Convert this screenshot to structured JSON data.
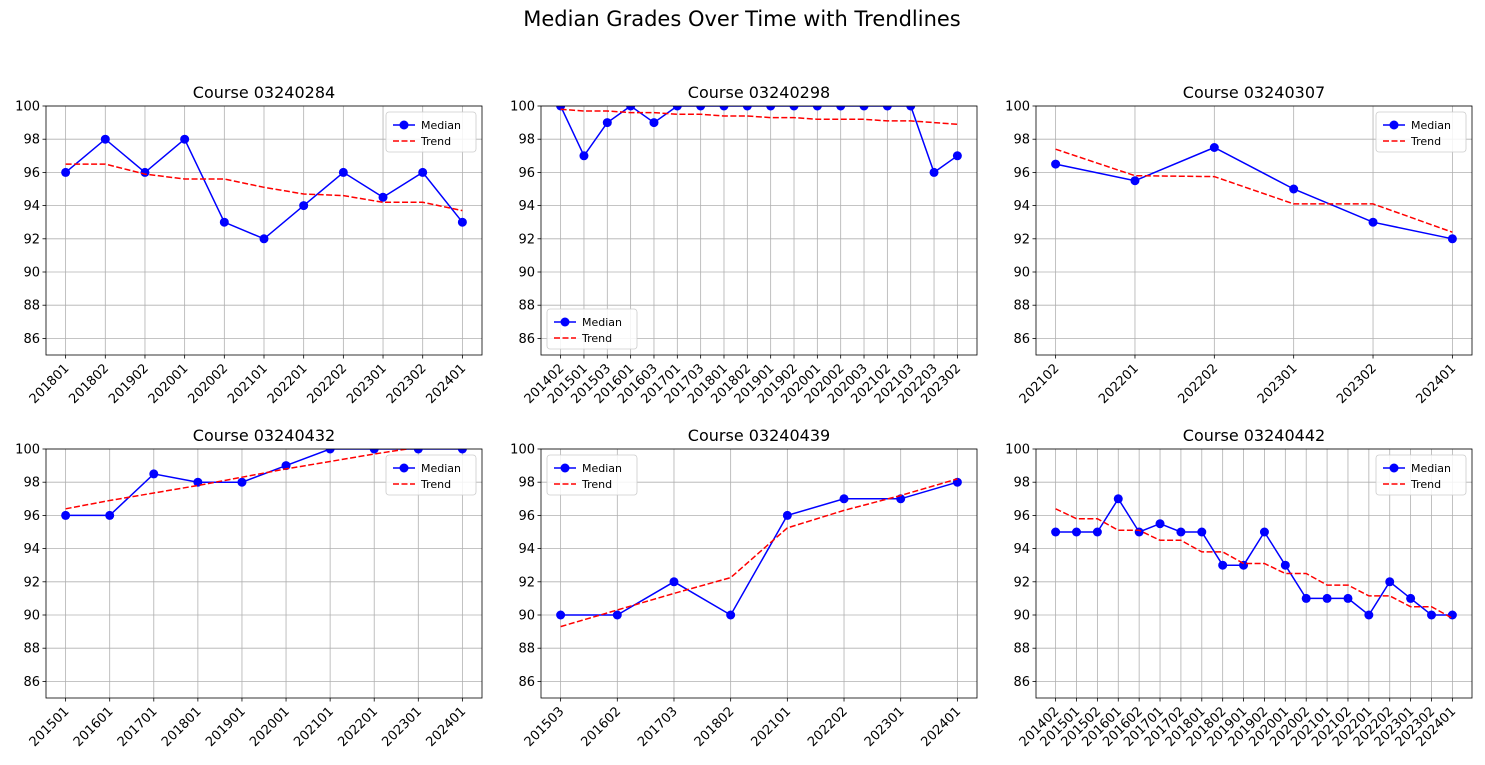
{
  "figure_title": "Median Grades Over Time with Trendlines",
  "chart_data": [
    {
      "type": "line",
      "title": "Course 03240284",
      "ylim": [
        85,
        100
      ],
      "yticks": [
        86,
        88,
        90,
        92,
        94,
        96,
        98,
        100
      ],
      "grid": true,
      "legend_position": "upper-right",
      "categories": [
        "201801",
        "201802",
        "201902",
        "202001",
        "202002",
        "202101",
        "202201",
        "202202",
        "202301",
        "202302",
        "202401"
      ],
      "series": [
        {
          "name": "Median",
          "color": "#0000ff",
          "style": "solid",
          "markers": true,
          "values": [
            96,
            98,
            96,
            98,
            93,
            92,
            94,
            96,
            94.5,
            96,
            93
          ]
        },
        {
          "name": "Trend",
          "color": "#ff0000",
          "style": "dashed",
          "markers": false,
          "values": [
            96.5,
            96.5,
            95.9,
            95.6,
            95.6,
            95.1,
            94.7,
            94.6,
            94.2,
            94.2,
            93.7
          ]
        }
      ]
    },
    {
      "type": "line",
      "title": "Course 03240298",
      "ylim": [
        85,
        100
      ],
      "yticks": [
        86,
        88,
        90,
        92,
        94,
        96,
        98,
        100
      ],
      "grid": true,
      "legend_position": "lower-left",
      "categories": [
        "201402",
        "201501",
        "201503",
        "201601",
        "201603",
        "201701",
        "201703",
        "201801",
        "201802",
        "201901",
        "201902",
        "202001",
        "202002",
        "202003",
        "202102",
        "202103",
        "202203",
        "202302"
      ],
      "series": [
        {
          "name": "Median",
          "color": "#0000ff",
          "style": "solid",
          "markers": true,
          "values": [
            100,
            97,
            99,
            100,
            99,
            100,
            100,
            100,
            100,
            100,
            100,
            100,
            100,
            100,
            100,
            100,
            96,
            97
          ]
        },
        {
          "name": "Trend",
          "color": "#ff0000",
          "style": "dashed",
          "markers": false,
          "values": [
            99.8,
            99.7,
            99.7,
            99.6,
            99.6,
            99.5,
            99.5,
            99.4,
            99.4,
            99.3,
            99.3,
            99.2,
            99.2,
            99.2,
            99.1,
            99.1,
            99.0,
            98.9
          ]
        }
      ]
    },
    {
      "type": "line",
      "title": "Course 03240307",
      "ylim": [
        85,
        100
      ],
      "yticks": [
        86,
        88,
        90,
        92,
        94,
        96,
        98,
        100
      ],
      "grid": true,
      "legend_position": "upper-right",
      "categories": [
        "202102",
        "202201",
        "202202",
        "202301",
        "202302",
        "202401"
      ],
      "series": [
        {
          "name": "Median",
          "color": "#0000ff",
          "style": "solid",
          "markers": true,
          "values": [
            96.5,
            95.5,
            97.5,
            95,
            93,
            92
          ]
        },
        {
          "name": "Trend",
          "color": "#ff0000",
          "style": "dashed",
          "markers": false,
          "values": [
            97.4,
            95.8,
            95.75,
            94.1,
            94.1,
            92.4
          ]
        }
      ]
    },
    {
      "type": "line",
      "title": "Course 03240432",
      "ylim": [
        85,
        100
      ],
      "yticks": [
        86,
        88,
        90,
        92,
        94,
        96,
        98,
        100
      ],
      "grid": true,
      "legend_position": "upper-right",
      "categories": [
        "201501",
        "201601",
        "201701",
        "201801",
        "201901",
        "202001",
        "202101",
        "202201",
        "202301",
        "202401"
      ],
      "series": [
        {
          "name": "Median",
          "color": "#0000ff",
          "style": "solid",
          "markers": true,
          "values": [
            96,
            96,
            98.5,
            98,
            98,
            99,
            100,
            100,
            100,
            100
          ]
        },
        {
          "name": "Trend",
          "color": "#ff0000",
          "style": "dashed",
          "markers": false,
          "values": [
            96.4,
            96.9,
            97.35,
            97.8,
            98.3,
            98.8,
            99.25,
            99.7,
            100.1,
            100.6
          ]
        }
      ]
    },
    {
      "type": "line",
      "title": "Course 03240439",
      "ylim": [
        85,
        100
      ],
      "yticks": [
        86,
        88,
        90,
        92,
        94,
        96,
        98,
        100
      ],
      "grid": true,
      "legend_position": "upper-left",
      "categories": [
        "201503",
        "201602",
        "201703",
        "201802",
        "202101",
        "202202",
        "202301",
        "202401"
      ],
      "series": [
        {
          "name": "Median",
          "color": "#0000ff",
          "style": "solid",
          "markers": true,
          "values": [
            90,
            90,
            92,
            90,
            96,
            97,
            97,
            98
          ]
        },
        {
          "name": "Trend",
          "color": "#ff0000",
          "style": "dashed",
          "markers": false,
          "values": [
            89.3,
            90.3,
            91.3,
            92.25,
            95.25,
            96.3,
            97.2,
            98.2
          ]
        }
      ]
    },
    {
      "type": "line",
      "title": "Course 03240442",
      "ylim": [
        85,
        100
      ],
      "yticks": [
        86,
        88,
        90,
        92,
        94,
        96,
        98,
        100
      ],
      "grid": true,
      "legend_position": "upper-right",
      "categories": [
        "201402",
        "201501",
        "201502",
        "201601",
        "201602",
        "201701",
        "201702",
        "201801",
        "201802",
        "201901",
        "201902",
        "202001",
        "202002",
        "202101",
        "202102",
        "202201",
        "202202",
        "202301",
        "202302",
        "202401"
      ],
      "series": [
        {
          "name": "Median",
          "color": "#0000ff",
          "style": "solid",
          "markers": true,
          "values": [
            95,
            95,
            95,
            97,
            95,
            95.5,
            95,
            95,
            93,
            93,
            95,
            93,
            91,
            91,
            91,
            90,
            92,
            91,
            90,
            90
          ]
        },
        {
          "name": "Trend",
          "color": "#ff0000",
          "style": "dashed",
          "markers": false,
          "values": [
            96.4,
            95.8,
            95.8,
            95.1,
            95.1,
            94.5,
            94.5,
            93.8,
            93.8,
            93.1,
            93.1,
            92.5,
            92.5,
            91.8,
            91.8,
            91.15,
            91.15,
            90.5,
            90.5,
            89.8
          ]
        }
      ]
    }
  ]
}
